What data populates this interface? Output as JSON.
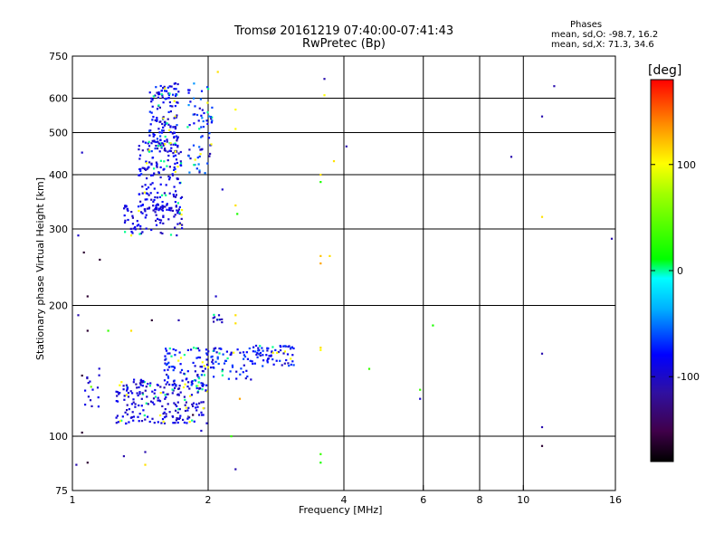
{
  "chart_data": {
    "type": "scatter",
    "title": "Tromsø 20161219 07:40:00-07:41:43",
    "subtitle": "RwPretec (Bp)",
    "stats": {
      "heading": "Phases",
      "o_line": "mean, sd,O: -98.7, 16.2",
      "x_line": "mean, sd,X:  71.3, 34.6"
    },
    "xlabel": "Frequency [MHz]",
    "ylabel": "Stationary phase Virtual Height [km]",
    "x_scale": "log",
    "y_scale": "log",
    "xlim": [
      1,
      16
    ],
    "ylim": [
      75,
      750
    ],
    "xticks": [
      1,
      2,
      4,
      6,
      8,
      10,
      16
    ],
    "x_gridlines": [
      2,
      4,
      6,
      8,
      10
    ],
    "yticks": [
      75,
      100,
      200,
      300,
      400,
      500,
      600,
      750
    ],
    "y_gridlines": [
      100,
      200,
      300,
      400,
      500,
      600
    ],
    "grid": true,
    "colorbar": {
      "label": "[deg]",
      "range": [
        -180,
        180
      ],
      "ticks": [
        100,
        0,
        -100
      ],
      "colormap": "rainbow"
    },
    "clusters": [
      {
        "x": [
          1.3,
          1.75
        ],
        "y": [
          290,
          340
        ],
        "n": 90,
        "phase": [
          -110,
          -80
        ]
      },
      {
        "x": [
          1.4,
          1.75
        ],
        "y": [
          330,
          480
        ],
        "n": 170,
        "phase": [
          -110,
          -70
        ]
      },
      {
        "x": [
          1.48,
          1.72
        ],
        "y": [
          450,
          650
        ],
        "n": 150,
        "phase": [
          -110,
          -60
        ]
      },
      {
        "x": [
          1.8,
          2.05
        ],
        "y": [
          400,
          650
        ],
        "n": 70,
        "phase": [
          -110,
          -40
        ]
      },
      {
        "x": [
          1.05,
          1.15
        ],
        "y": [
          115,
          145
        ],
        "n": 15,
        "phase": [
          -110,
          -80
        ]
      },
      {
        "x": [
          1.25,
          2.0
        ],
        "y": [
          107,
          135
        ],
        "n": 220,
        "phase": [
          -110,
          -80
        ]
      },
      {
        "x": [
          1.6,
          2.0
        ],
        "y": [
          128,
          160
        ],
        "n": 90,
        "phase": [
          -110,
          -60
        ]
      },
      {
        "x": [
          2.0,
          2.5
        ],
        "y": [
          135,
          160
        ],
        "n": 60,
        "phase": [
          -110,
          -60
        ]
      },
      {
        "x": [
          2.5,
          3.1
        ],
        "y": [
          145,
          162
        ],
        "n": 70,
        "phase": [
          -110,
          -60
        ]
      },
      {
        "x": [
          2.05,
          2.15
        ],
        "y": [
          183,
          193
        ],
        "n": 10,
        "phase": [
          -110,
          -90
        ]
      }
    ],
    "points": [
      {
        "x": 2.1,
        "y": 690,
        "phase": 110
      },
      {
        "x": 3.62,
        "y": 665,
        "phase": -110
      },
      {
        "x": 3.62,
        "y": 610,
        "phase": 100
      },
      {
        "x": 2.3,
        "y": 565,
        "phase": 100
      },
      {
        "x": 2.3,
        "y": 510,
        "phase": 100
      },
      {
        "x": 1.05,
        "y": 450,
        "phase": -100
      },
      {
        "x": 4.05,
        "y": 465,
        "phase": -110
      },
      {
        "x": 3.55,
        "y": 400,
        "phase": 110
      },
      {
        "x": 3.55,
        "y": 385,
        "phase": 20
      },
      {
        "x": 3.8,
        "y": 430,
        "phase": 110
      },
      {
        "x": 2.15,
        "y": 370,
        "phase": -100
      },
      {
        "x": 2.3,
        "y": 340,
        "phase": 110
      },
      {
        "x": 2.32,
        "y": 325,
        "phase": 20
      },
      {
        "x": 1.03,
        "y": 290,
        "phase": -100
      },
      {
        "x": 1.06,
        "y": 265,
        "phase": -160
      },
      {
        "x": 1.15,
        "y": 255,
        "phase": -160
      },
      {
        "x": 1.35,
        "y": 290,
        "phase": 100
      },
      {
        "x": 3.55,
        "y": 260,
        "phase": 120
      },
      {
        "x": 3.55,
        "y": 250,
        "phase": 130
      },
      {
        "x": 3.72,
        "y": 260,
        "phase": 110
      },
      {
        "x": 1.08,
        "y": 210,
        "phase": -160
      },
      {
        "x": 2.08,
        "y": 210,
        "phase": -100
      },
      {
        "x": 1.03,
        "y": 190,
        "phase": -110
      },
      {
        "x": 1.08,
        "y": 175,
        "phase": -160
      },
      {
        "x": 1.5,
        "y": 185,
        "phase": -160
      },
      {
        "x": 1.72,
        "y": 185,
        "phase": -110
      },
      {
        "x": 2.3,
        "y": 190,
        "phase": 110
      },
      {
        "x": 2.3,
        "y": 182,
        "phase": 110
      },
      {
        "x": 6.3,
        "y": 180,
        "phase": 20
      },
      {
        "x": 1.35,
        "y": 175,
        "phase": 110
      },
      {
        "x": 1.2,
        "y": 175,
        "phase": 30
      },
      {
        "x": 3.55,
        "y": 160,
        "phase": 110
      },
      {
        "x": 3.55,
        "y": 158,
        "phase": 100
      },
      {
        "x": 4.55,
        "y": 143,
        "phase": 30
      },
      {
        "x": 1.1,
        "y": 130,
        "phase": 50
      },
      {
        "x": 1.05,
        "y": 138,
        "phase": -160
      },
      {
        "x": 5.9,
        "y": 128,
        "phase": 30
      },
      {
        "x": 5.9,
        "y": 122,
        "phase": -100
      },
      {
        "x": 2.35,
        "y": 122,
        "phase": 130
      },
      {
        "x": 1.85,
        "y": 112,
        "phase": -160
      },
      {
        "x": 1.82,
        "y": 108,
        "phase": 100
      },
      {
        "x": 1.93,
        "y": 103,
        "phase": -100
      },
      {
        "x": 2.25,
        "y": 100,
        "phase": 30
      },
      {
        "x": 1.05,
        "y": 102,
        "phase": -160
      },
      {
        "x": 1.45,
        "y": 92,
        "phase": -110
      },
      {
        "x": 1.3,
        "y": 90,
        "phase": -110
      },
      {
        "x": 1.08,
        "y": 87,
        "phase": -160
      },
      {
        "x": 1.02,
        "y": 86,
        "phase": -110
      },
      {
        "x": 1.45,
        "y": 86,
        "phase": 110
      },
      {
        "x": 2.3,
        "y": 84,
        "phase": -110
      },
      {
        "x": 3.55,
        "y": 91,
        "phase": 30
      },
      {
        "x": 3.55,
        "y": 87,
        "phase": 20
      },
      {
        "x": 11.0,
        "y": 545,
        "phase": -110
      },
      {
        "x": 11.7,
        "y": 640,
        "phase": -110
      },
      {
        "x": 9.4,
        "y": 440,
        "phase": -110
      },
      {
        "x": 11.0,
        "y": 320,
        "phase": 110
      },
      {
        "x": 15.7,
        "y": 285,
        "phase": -110
      },
      {
        "x": 11.0,
        "y": 155,
        "phase": -110
      },
      {
        "x": 11.0,
        "y": 105,
        "phase": -110
      },
      {
        "x": 11.0,
        "y": 95,
        "phase": -160
      }
    ]
  }
}
